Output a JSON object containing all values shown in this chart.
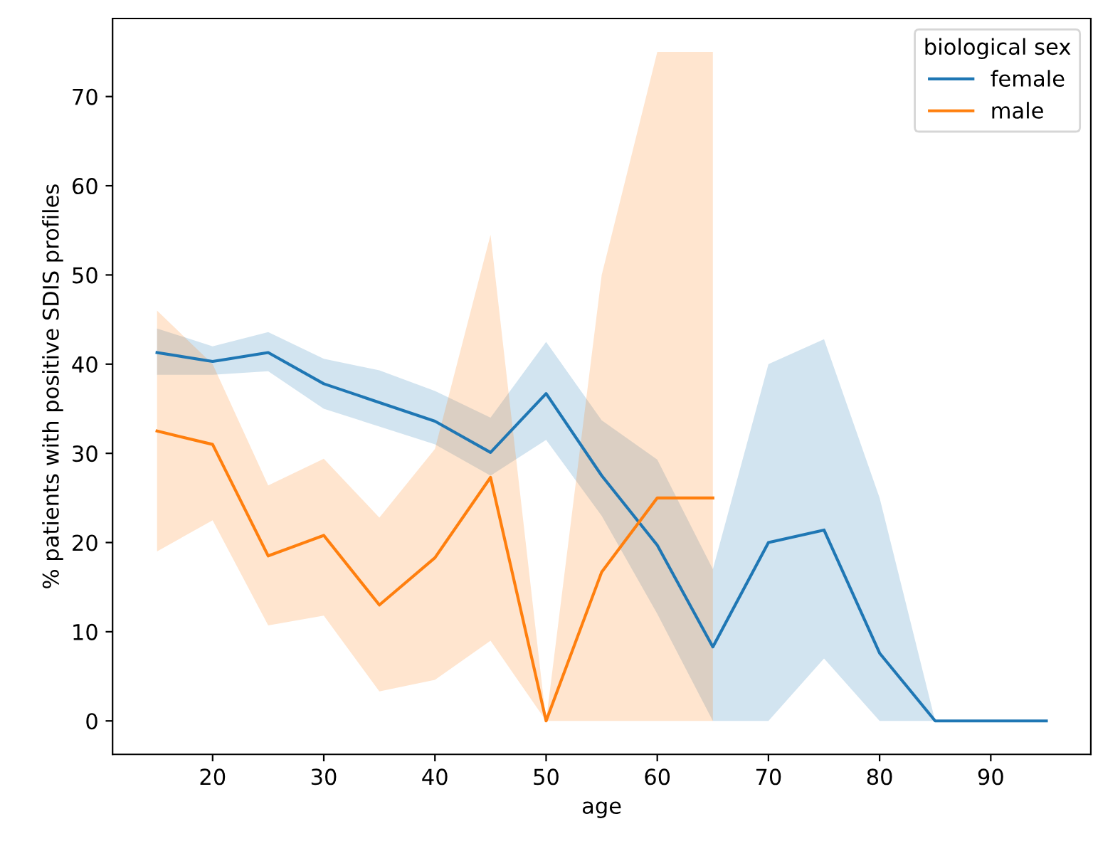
{
  "chart_data": {
    "type": "line",
    "xlabel": "age",
    "ylabel": "% patients with positive SDIS profiles",
    "legend_title": "biological sex",
    "legend": "top right",
    "xlim": [
      11,
      99
    ],
    "xticks": [
      20,
      30,
      40,
      50,
      60,
      70,
      80,
      90
    ],
    "ylim": [
      -3.75,
      78.75
    ],
    "yticks": [
      0,
      10,
      20,
      30,
      40,
      50,
      60,
      70
    ],
    "grid": false,
    "series": [
      {
        "name": "female",
        "color": "#1f77b4",
        "x": [
          15,
          20,
          25,
          30,
          35,
          40,
          45,
          50,
          55,
          60,
          65,
          70,
          75,
          80,
          85,
          90,
          95
        ],
        "values": [
          41.3,
          40.3,
          41.3,
          37.8,
          35.7,
          33.6,
          30.1,
          36.7,
          27.5,
          19.7,
          8.3,
          20,
          21.4,
          7.6,
          0,
          0,
          0
        ],
        "lower": [
          38.8,
          38.8,
          39.2,
          35,
          33,
          31,
          27.5,
          31.5,
          23,
          12,
          0,
          0,
          7,
          0,
          0,
          0,
          0
        ],
        "upper": [
          44,
          42,
          43.6,
          40.6,
          39.3,
          37,
          34,
          42.5,
          33.7,
          29.3,
          17,
          40,
          42.8,
          25,
          0,
          0,
          0
        ]
      },
      {
        "name": "male",
        "color": "#ff7f0e",
        "x": [
          15,
          20,
          25,
          30,
          35,
          40,
          45,
          50,
          55,
          60,
          65
        ],
        "values": [
          32.5,
          31,
          18.5,
          20.8,
          13,
          18.3,
          27.3,
          0,
          16.7,
          25,
          25
        ],
        "lower": [
          19,
          22.5,
          10.7,
          11.8,
          3.3,
          4.6,
          9,
          0,
          0,
          0,
          0
        ],
        "upper": [
          46,
          40,
          26.4,
          29.4,
          22.8,
          30.5,
          54.5,
          0,
          50,
          75,
          75
        ]
      }
    ]
  }
}
